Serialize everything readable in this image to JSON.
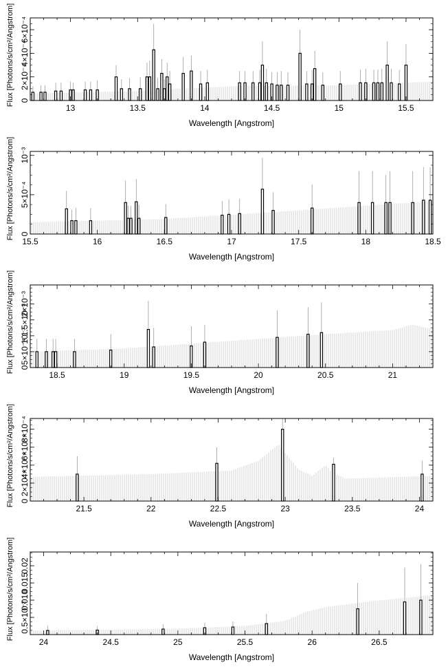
{
  "chart_data": [
    {
      "type": "bar",
      "xlabel": "Wavelength [Angstrom]",
      "ylabel": "Flux [Photons/s/cm²/Angstrom]",
      "xlim": [
        12.7,
        15.7
      ],
      "ylim": [
        0,
        0.0007
      ],
      "xticks": [
        13,
        13.5,
        14,
        14.5,
        15,
        15.5
      ],
      "xtick_labels": [
        "13",
        "13.5",
        "14",
        "14.5",
        "15",
        "15.5"
      ],
      "yticks": [
        0,
        0.0002,
        0.0004,
        0.0006
      ],
      "ytick_labels": [
        "0",
        "2×10⁻⁴",
        "4×10⁻⁴",
        "6×10⁻⁴"
      ],
      "continuum": {
        "x": [
          12.7,
          13.5,
          14.2,
          15.0,
          15.7
        ],
        "y": [
          6e-05,
          8e-05,
          0.00012,
          0.00013,
          0.00016
        ]
      },
      "lines": [
        {
          "x": 12.72,
          "y": 7e-05,
          "err": 0.00012
        },
        {
          "x": 12.78,
          "y": 7e-05,
          "err": 0.00013
        },
        {
          "x": 12.81,
          "y": 7e-05,
          "err": 0.00013
        },
        {
          "x": 12.89,
          "y": 8e-05,
          "err": 0.00015
        },
        {
          "x": 12.93,
          "y": 8e-05,
          "err": 0.00015
        },
        {
          "x": 13.0,
          "y": 9e-05,
          "err": 0.00016
        },
        {
          "x": 13.02,
          "y": 9e-05,
          "err": 0.00015
        },
        {
          "x": 13.11,
          "y": 9e-05,
          "err": 0.00016
        },
        {
          "x": 13.15,
          "y": 9e-05,
          "err": 0.00016
        },
        {
          "x": 13.2,
          "y": 9e-05,
          "err": 0.00017
        },
        {
          "x": 13.34,
          "y": 0.0002,
          "err": 0.0003
        },
        {
          "x": 13.38,
          "y": 0.0001,
          "err": 0.00018
        },
        {
          "x": 13.44,
          "y": 0.0001,
          "err": 0.00019
        },
        {
          "x": 13.52,
          "y": 0.0001,
          "err": 0.0002
        },
        {
          "x": 13.57,
          "y": 0.0002,
          "err": 0.00032
        },
        {
          "x": 13.59,
          "y": 0.0002,
          "err": 0.00034
        },
        {
          "x": 13.62,
          "y": 0.00043,
          "err": 0.00065
        },
        {
          "x": 13.65,
          "y": 0.0001,
          "err": 0.00019
        },
        {
          "x": 13.68,
          "y": 0.00023,
          "err": 0.00035
        },
        {
          "x": 13.7,
          "y": 0.0001,
          "err": 0.00018
        },
        {
          "x": 13.72,
          "y": 0.0002,
          "err": 0.00032
        },
        {
          "x": 13.74,
          "y": 0.00014,
          "err": 0.00025
        },
        {
          "x": 13.84,
          "y": 0.00023,
          "err": 0.00037
        },
        {
          "x": 13.9,
          "y": 0.00025,
          "err": 0.00038
        },
        {
          "x": 13.97,
          "y": 0.00014,
          "err": 0.00025
        },
        {
          "x": 14.02,
          "y": 0.00015,
          "err": 0.00026
        },
        {
          "x": 14.26,
          "y": 0.00015,
          "err": 0.00025
        },
        {
          "x": 14.3,
          "y": 0.00015,
          "err": 0.00025
        },
        {
          "x": 14.36,
          "y": 0.00015,
          "err": 0.00025
        },
        {
          "x": 14.41,
          "y": 0.00015,
          "err": 0.00026
        },
        {
          "x": 14.43,
          "y": 0.0003,
          "err": 0.0005
        },
        {
          "x": 14.46,
          "y": 0.00015,
          "err": 0.00027
        },
        {
          "x": 14.5,
          "y": 0.00014,
          "err": 0.00024
        },
        {
          "x": 14.54,
          "y": 0.00013,
          "err": 0.00024
        },
        {
          "x": 14.57,
          "y": 0.00013,
          "err": 0.00025
        },
        {
          "x": 14.62,
          "y": 0.00013,
          "err": 0.00024
        },
        {
          "x": 14.71,
          "y": 0.0004,
          "err": 0.0006
        },
        {
          "x": 14.76,
          "y": 0.00014,
          "err": 0.00025
        },
        {
          "x": 14.8,
          "y": 0.00014,
          "err": 0.00026
        },
        {
          "x": 14.82,
          "y": 0.00027,
          "err": 0.00042
        },
        {
          "x": 14.88,
          "y": 0.00013,
          "err": 0.00024
        },
        {
          "x": 15.01,
          "y": 0.00014,
          "err": 0.00025
        },
        {
          "x": 15.16,
          "y": 0.00015,
          "err": 0.00026
        },
        {
          "x": 15.2,
          "y": 0.00015,
          "err": 0.00027
        },
        {
          "x": 15.26,
          "y": 0.00015,
          "err": 0.00026
        },
        {
          "x": 15.29,
          "y": 0.00015,
          "err": 0.00026
        },
        {
          "x": 15.32,
          "y": 0.00015,
          "err": 0.00027
        },
        {
          "x": 15.36,
          "y": 0.0003,
          "err": 0.0005
        },
        {
          "x": 15.39,
          "y": 0.00015,
          "err": 0.00027
        },
        {
          "x": 15.45,
          "y": 0.00014,
          "err": 0.00026
        },
        {
          "x": 15.5,
          "y": 0.0003,
          "err": 0.00048
        }
      ]
    },
    {
      "type": "bar",
      "xlabel": "Wavelength [Angstrom]",
      "ylabel": "Flux [Photons/s/cm²/Angstrom]",
      "xlim": [
        15.5,
        18.5
      ],
      "ylim": [
        0,
        0.00105
      ],
      "xticks": [
        15.5,
        16,
        16.5,
        17,
        17.5,
        18,
        18.5
      ],
      "xtick_labels": [
        "15.5",
        "16",
        "16.5",
        "17",
        "17.5",
        "18",
        "18.5"
      ],
      "yticks": [
        0,
        0.0005,
        0.001
      ],
      "ytick_labels": [
        "0",
        "5×10⁻⁴",
        "10⁻³"
      ],
      "continuum": {
        "x": [
          15.5,
          16.5,
          17.5,
          18.5
        ],
        "y": [
          0.00015,
          0.00019,
          0.0003,
          0.00042
        ]
      },
      "lines": [
        {
          "x": 15.77,
          "y": 0.00032,
          "err": 0.00055
        },
        {
          "x": 15.81,
          "y": 0.00017,
          "err": 0.00031
        },
        {
          "x": 15.84,
          "y": 0.00017,
          "err": 0.00033
        },
        {
          "x": 15.95,
          "y": 0.00017,
          "err": 0.00033
        },
        {
          "x": 16.21,
          "y": 0.0004,
          "err": 0.00068
        },
        {
          "x": 16.23,
          "y": 0.0002,
          "err": 0.00036
        },
        {
          "x": 16.25,
          "y": 0.0002,
          "err": 0.00036
        },
        {
          "x": 16.29,
          "y": 0.00041,
          "err": 0.0007
        },
        {
          "x": 16.31,
          "y": 0.0002,
          "err": 0.00037
        },
        {
          "x": 16.51,
          "y": 0.00021,
          "err": 0.00038
        },
        {
          "x": 16.93,
          "y": 0.00024,
          "err": 0.00042
        },
        {
          "x": 16.98,
          "y": 0.00025,
          "err": 0.00044
        },
        {
          "x": 17.06,
          "y": 0.00026,
          "err": 0.00045
        },
        {
          "x": 17.23,
          "y": 0.00057,
          "err": 0.00097
        },
        {
          "x": 17.31,
          "y": 0.0003,
          "err": 0.00053
        },
        {
          "x": 17.6,
          "y": 0.00033,
          "err": 0.00063
        },
        {
          "x": 17.95,
          "y": 0.0004,
          "err": 0.0008
        },
        {
          "x": 18.05,
          "y": 0.0004,
          "err": 0.0008
        },
        {
          "x": 18.15,
          "y": 0.0004,
          "err": 0.00075
        },
        {
          "x": 18.18,
          "y": 0.0004,
          "err": 0.0008
        },
        {
          "x": 18.35,
          "y": 0.0004,
          "err": 0.0008
        },
        {
          "x": 18.43,
          "y": 0.00043,
          "err": 0.00085
        },
        {
          "x": 18.48,
          "y": 0.00043,
          "err": 0.00085
        }
      ]
    },
    {
      "type": "bar",
      "xlabel": "Wavelength [Angstrom]",
      "ylabel": "Flux [Photons/s/cm²/Angstrom]",
      "xlim": [
        18.3,
        21.3
      ],
      "ylim": [
        0,
        0.0026
      ],
      "xticks": [
        18.5,
        19,
        19.5,
        20,
        20.5,
        21
      ],
      "xtick_labels": [
        "18.5",
        "19",
        "19.5",
        "20",
        "20.5",
        "21"
      ],
      "yticks": [
        0,
        0.0005,
        0.001,
        0.0015,
        0.002
      ],
      "ytick_labels": [
        "0",
        "5×10⁻⁴",
        "10⁻³",
        "1.5×10⁻³",
        "2×10⁻³"
      ],
      "continuum": {
        "x": [
          18.3,
          19.0,
          19.5,
          20.0,
          20.5,
          21.0,
          21.15,
          21.3
        ],
        "y": [
          0.0005,
          0.0006,
          0.00075,
          0.0009,
          0.00105,
          0.00118,
          0.00135,
          0.0012
        ]
      },
      "lines": [
        {
          "x": 18.35,
          "y": 0.0005,
          "err": 0.0009
        },
        {
          "x": 18.42,
          "y": 0.0005,
          "err": 0.0009
        },
        {
          "x": 18.47,
          "y": 0.0005,
          "err": 0.0009
        },
        {
          "x": 18.49,
          "y": 0.0005,
          "err": 0.0009
        },
        {
          "x": 18.63,
          "y": 0.0005,
          "err": 0.0009
        },
        {
          "x": 18.9,
          "y": 0.00055,
          "err": 0.00105
        },
        {
          "x": 19.18,
          "y": 0.0012,
          "err": 0.0021
        },
        {
          "x": 19.22,
          "y": 0.00065,
          "err": 0.00125
        },
        {
          "x": 19.5,
          "y": 0.00068,
          "err": 0.0013
        },
        {
          "x": 19.6,
          "y": 0.0008,
          "err": 0.00135
        },
        {
          "x": 20.14,
          "y": 0.00095,
          "err": 0.0018
        },
        {
          "x": 20.37,
          "y": 0.00105,
          "err": 0.0019
        },
        {
          "x": 20.47,
          "y": 0.0011,
          "err": 0.00205
        }
      ]
    },
    {
      "type": "bar",
      "xlabel": "Wavelength [Angstrom]",
      "ylabel": "Flux [Photons/s/cm²/Angstrom]",
      "xlim": [
        21.1,
        24.1
      ],
      "ylim": [
        0,
        0.00092
      ],
      "xticks": [
        21.5,
        22,
        22.5,
        23,
        23.5,
        24
      ],
      "xtick_labels": [
        "21.5",
        "22",
        "22.5",
        "23",
        "23.5",
        "24"
      ],
      "yticks": [
        0,
        0.0002,
        0.0004,
        0.0006,
        0.0008
      ],
      "ytick_labels": [
        "0",
        "2×10⁻⁴",
        "4×10⁻⁴",
        "6×10⁻⁴",
        "8×10⁻⁴"
      ],
      "continuum": {
        "x": [
          21.1,
          22.0,
          22.6,
          22.8,
          22.95,
          23.1,
          23.2,
          23.3,
          23.35,
          23.45,
          24.1
        ],
        "y": [
          0.00027,
          0.0003,
          0.00034,
          0.00045,
          0.00063,
          0.00035,
          0.00028,
          0.0004,
          0.00032,
          0.00025,
          0.00028
        ]
      },
      "lines": [
        {
          "x": 21.45,
          "y": 0.0003,
          "err": 0.0005
        },
        {
          "x": 22.49,
          "y": 0.00042,
          "err": 0.0006
        },
        {
          "x": 22.98,
          "y": 0.0008,
          "err": 0.00096
        },
        {
          "x": 23.36,
          "y": 0.00041,
          "err": 0.00048
        },
        {
          "x": 24.02,
          "y": 0.0003,
          "err": 0.00045
        }
      ]
    },
    {
      "type": "bar",
      "xlabel": "Wavelength [Angstrom]",
      "ylabel": "Flux [Photons/s/cm²/Angstrom]",
      "xlim": [
        23.9,
        26.9
      ],
      "ylim": [
        0,
        0.024
      ],
      "xticks": [
        24,
        24.5,
        25,
        25.5,
        26,
        26.5
      ],
      "xtick_labels": [
        "24",
        "24.5",
        "25",
        "25.5",
        "26",
        "26.5"
      ],
      "yticks": [
        0.005,
        0.01,
        0.015,
        0.02
      ],
      "ytick_labels": [
        "0.5×10⁻²",
        "0.010",
        "0.015",
        "0.02"
      ],
      "continuum": {
        "x": [
          23.9,
          25.0,
          25.5,
          25.8,
          25.95,
          26.1,
          26.4,
          26.9
        ],
        "y": [
          0.0012,
          0.0017,
          0.0025,
          0.004,
          0.0065,
          0.008,
          0.0095,
          0.0115
        ]
      },
      "lines": [
        {
          "x": 24.03,
          "y": 0.0012,
          "err": 0.0025
        },
        {
          "x": 24.4,
          "y": 0.0013,
          "err": 0.0025
        },
        {
          "x": 24.89,
          "y": 0.0016,
          "err": 0.003
        },
        {
          "x": 25.2,
          "y": 0.002,
          "err": 0.0035
        },
        {
          "x": 25.41,
          "y": 0.0022,
          "err": 0.0038
        },
        {
          "x": 25.66,
          "y": 0.0032,
          "err": 0.006
        },
        {
          "x": 26.34,
          "y": 0.0075,
          "err": 0.015
        },
        {
          "x": 26.69,
          "y": 0.0095,
          "err": 0.0195
        },
        {
          "x": 26.81,
          "y": 0.01,
          "err": 0.0205
        }
      ]
    }
  ]
}
